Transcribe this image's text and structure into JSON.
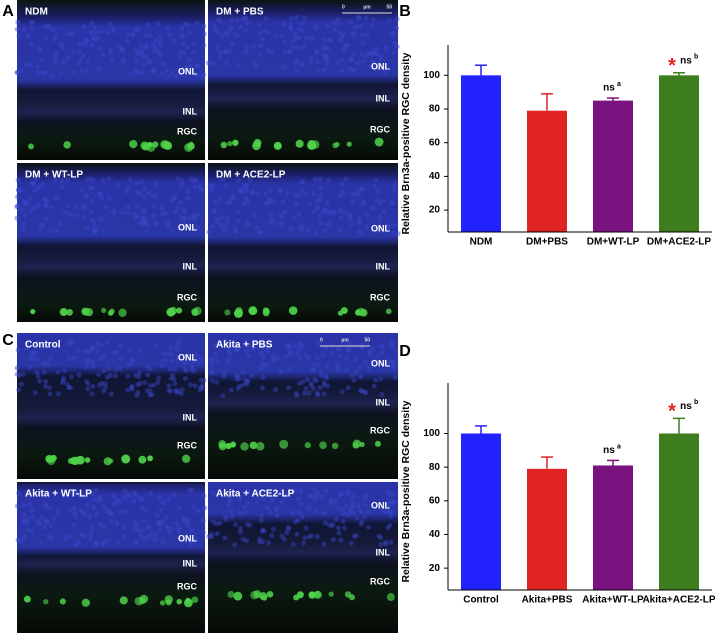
{
  "figure": {
    "panel_labels": [
      "A",
      "B",
      "C",
      "D"
    ],
    "scale_bar": [
      "0",
      "µm",
      "50"
    ],
    "images": [
      {
        "title": "NDM",
        "layers": [
          "ONL",
          "INL",
          "RGC"
        ]
      },
      {
        "title": "DM + PBS",
        "layers": [
          "ONL",
          "INL",
          "RGC"
        ]
      },
      {
        "title": "DM + WT-LP",
        "layers": [
          "ONL",
          "INL",
          "RGC"
        ]
      },
      {
        "title": "DM + ACE2-LP",
        "layers": [
          "ONL",
          "INL",
          "RGC"
        ]
      },
      {
        "title": "Control",
        "layers": [
          "ONL",
          "INL",
          "RGC"
        ]
      },
      {
        "title": "Akita + PBS",
        "layers": [
          "ONL",
          "INL",
          "RGC"
        ]
      },
      {
        "title": "Akita + WT-LP",
        "layers": [
          "ONL",
          "INL",
          "RGC"
        ]
      },
      {
        "title": "Akita + ACE2-LP",
        "layers": [
          "ONL",
          "INL",
          "RGC"
        ]
      }
    ]
  },
  "chart_data": [
    {
      "type": "bar",
      "y_label": "Relative Brn3a-positive RGC density",
      "categories": [
        "NDM",
        "DM+PBS",
        "DM+WT-LP",
        "DM+ACE2-LP"
      ],
      "values": [
        100,
        79,
        85,
        100
      ],
      "errors": [
        6,
        10,
        1.5,
        1.5
      ],
      "colors": [
        "#2222ff",
        "#e02424",
        "#7a1380",
        "#3e7d1e"
      ],
      "ylim": [
        7,
        118
      ],
      "yticks": [
        20,
        40,
        60,
        80,
        100
      ],
      "annotations": [
        {
          "text": "ns",
          "sup": "a"
        },
        {
          "text": "*"
        },
        {
          "text": "ns",
          "sup": "b"
        }
      ]
    },
    {
      "type": "bar",
      "y_label": "Relative Brn3a-positive RGC density",
      "categories": [
        "Control",
        "Akita+PBS",
        "Akita+WT-LP",
        "Akita+ACE2-LP"
      ],
      "values": [
        100,
        79,
        81,
        100
      ],
      "errors": [
        4.5,
        7,
        3,
        9
      ],
      "colors": [
        "#2222ff",
        "#e02424",
        "#7a1380",
        "#3e7d1e"
      ],
      "ylim": [
        7,
        130
      ],
      "yticks": [
        20,
        40,
        60,
        80,
        100
      ],
      "annotations": [
        {
          "text": "ns",
          "sup": "a"
        },
        {
          "text": "*"
        },
        {
          "text": "ns",
          "sup": "b"
        }
      ]
    }
  ]
}
